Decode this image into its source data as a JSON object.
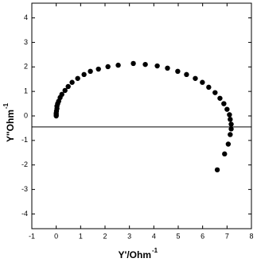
{
  "chart_data": {
    "type": "scatter",
    "xlabel": "Y'/Ohm",
    "xlabel_sup": "-1",
    "ylabel": "Y''Ohm",
    "ylabel_sup": "-1",
    "x": [
      0.0,
      0.0,
      0.0,
      0.01,
      0.03,
      0.03,
      0.06,
      0.1,
      0.16,
      0.23,
      0.36,
      0.49,
      0.65,
      0.88,
      1.14,
      1.4,
      1.73,
      2.12,
      2.54,
      3.16,
      3.65,
      4.14,
      4.56,
      4.98,
      5.34,
      5.7,
      5.99,
      6.25,
      6.51,
      6.71,
      6.87,
      7.0,
      7.1,
      7.13,
      7.17,
      7.17,
      7.13,
      7.05,
      6.9,
      6.6
    ],
    "y": [
      0.0,
      0.05,
      0.11,
      0.2,
      0.3,
      0.4,
      0.5,
      0.6,
      0.75,
      0.88,
      1.04,
      1.2,
      1.37,
      1.53,
      1.69,
      1.82,
      1.91,
      2.01,
      2.07,
      2.14,
      2.1,
      2.04,
      1.95,
      1.82,
      1.69,
      1.53,
      1.37,
      1.17,
      0.95,
      0.72,
      0.5,
      0.27,
      0.05,
      -0.14,
      -0.34,
      -0.53,
      -0.76,
      -1.15,
      -1.55,
      -2.2
    ],
    "color": "#000000",
    "xlim": [
      -1,
      8
    ],
    "ylim": [
      -4.6,
      4.6
    ],
    "xticks": [
      -1,
      0,
      1,
      2,
      3,
      4,
      5,
      6,
      7,
      8
    ],
    "yticks": [
      -4,
      -3,
      -2,
      -1,
      0,
      1,
      2,
      3,
      4
    ],
    "hline": -0.45
  }
}
